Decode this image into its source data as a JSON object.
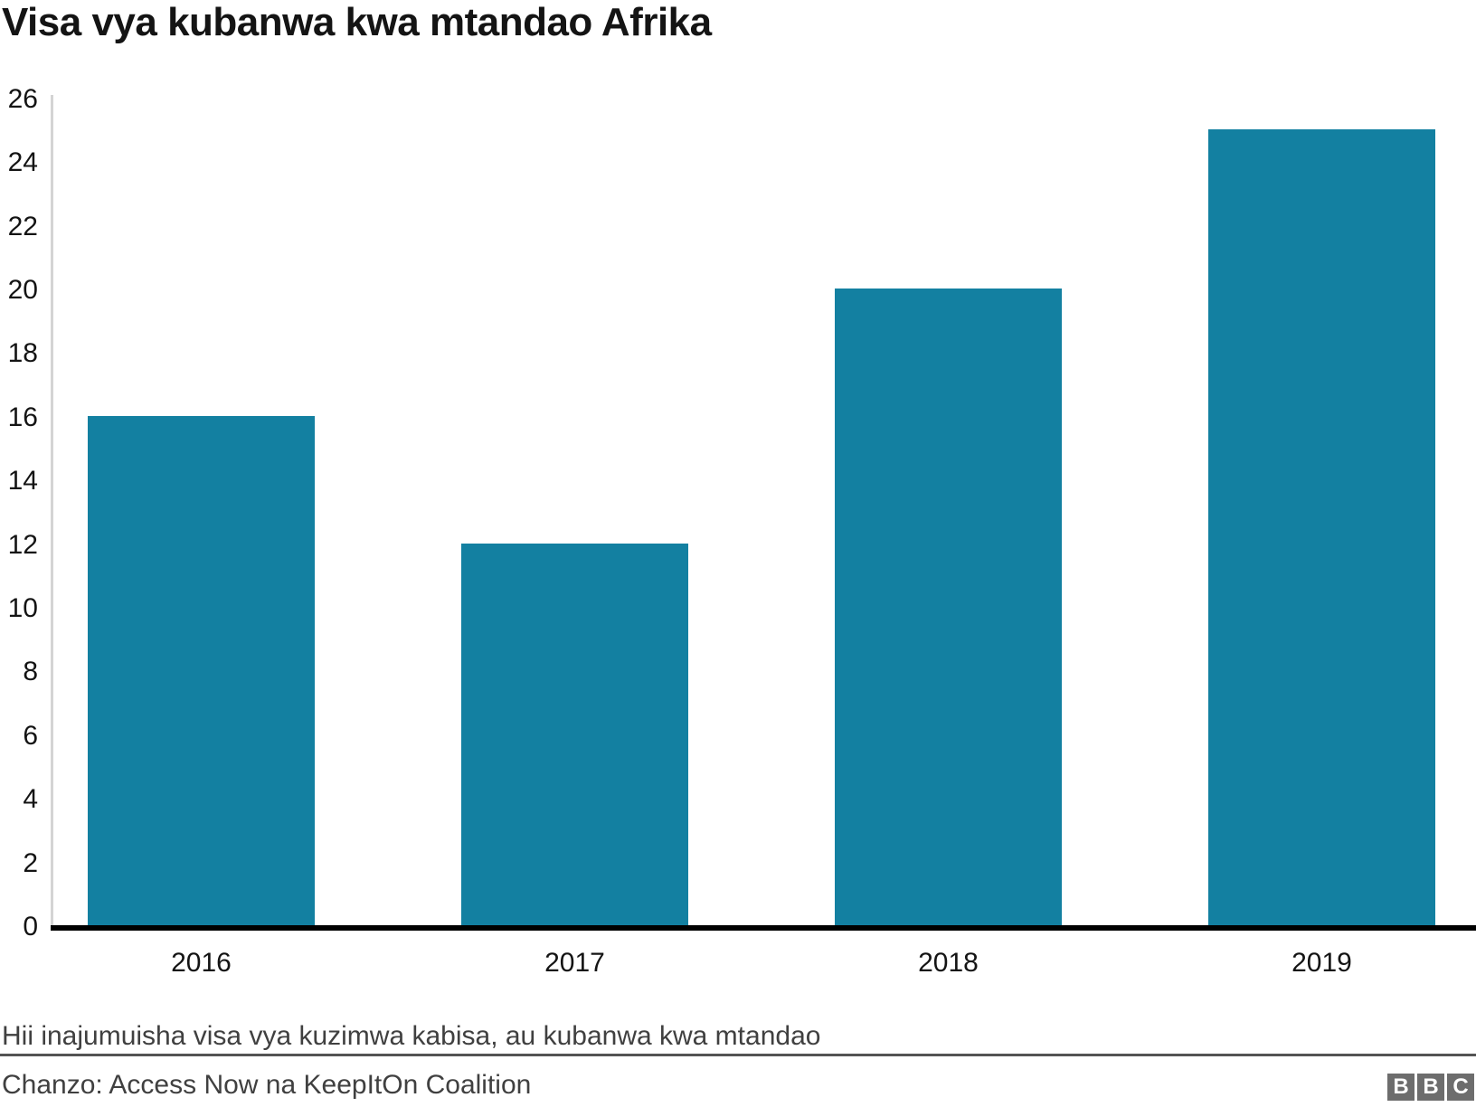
{
  "title": "Visa vya kubanwa kwa mtandao Afrika",
  "chart_data": {
    "type": "bar",
    "categories": [
      "2016",
      "2017",
      "2018",
      "2019"
    ],
    "values": [
      16,
      12,
      20,
      25
    ],
    "title": "Visa vya kubanwa kwa mtandao Afrika",
    "xlabel": "",
    "ylabel": "",
    "ylim": [
      0,
      26
    ],
    "yticks": [
      0,
      2,
      4,
      6,
      8,
      10,
      12,
      14,
      16,
      18,
      20,
      22,
      24,
      26
    ],
    "grid": false,
    "legend": "none",
    "bar_color": "#1380A1"
  },
  "footnote": "Hii inajumuisha visa vya kuzimwa kabisa, au kubanwa kwa mtandao",
  "source": "Chanzo: Access Now na KeepItOn Coalition",
  "logo": {
    "letters": [
      "B",
      "B",
      "C"
    ]
  },
  "colors": {
    "bar": "#1380A1",
    "title_text": "#141414",
    "axis_text": "#141414",
    "muted_text": "#404040",
    "divider": "#545454",
    "axis_line": "#d4d4d4",
    "baseline": "#000000",
    "logo_bg": "#6d6d6d",
    "background": "#ffffff"
  }
}
